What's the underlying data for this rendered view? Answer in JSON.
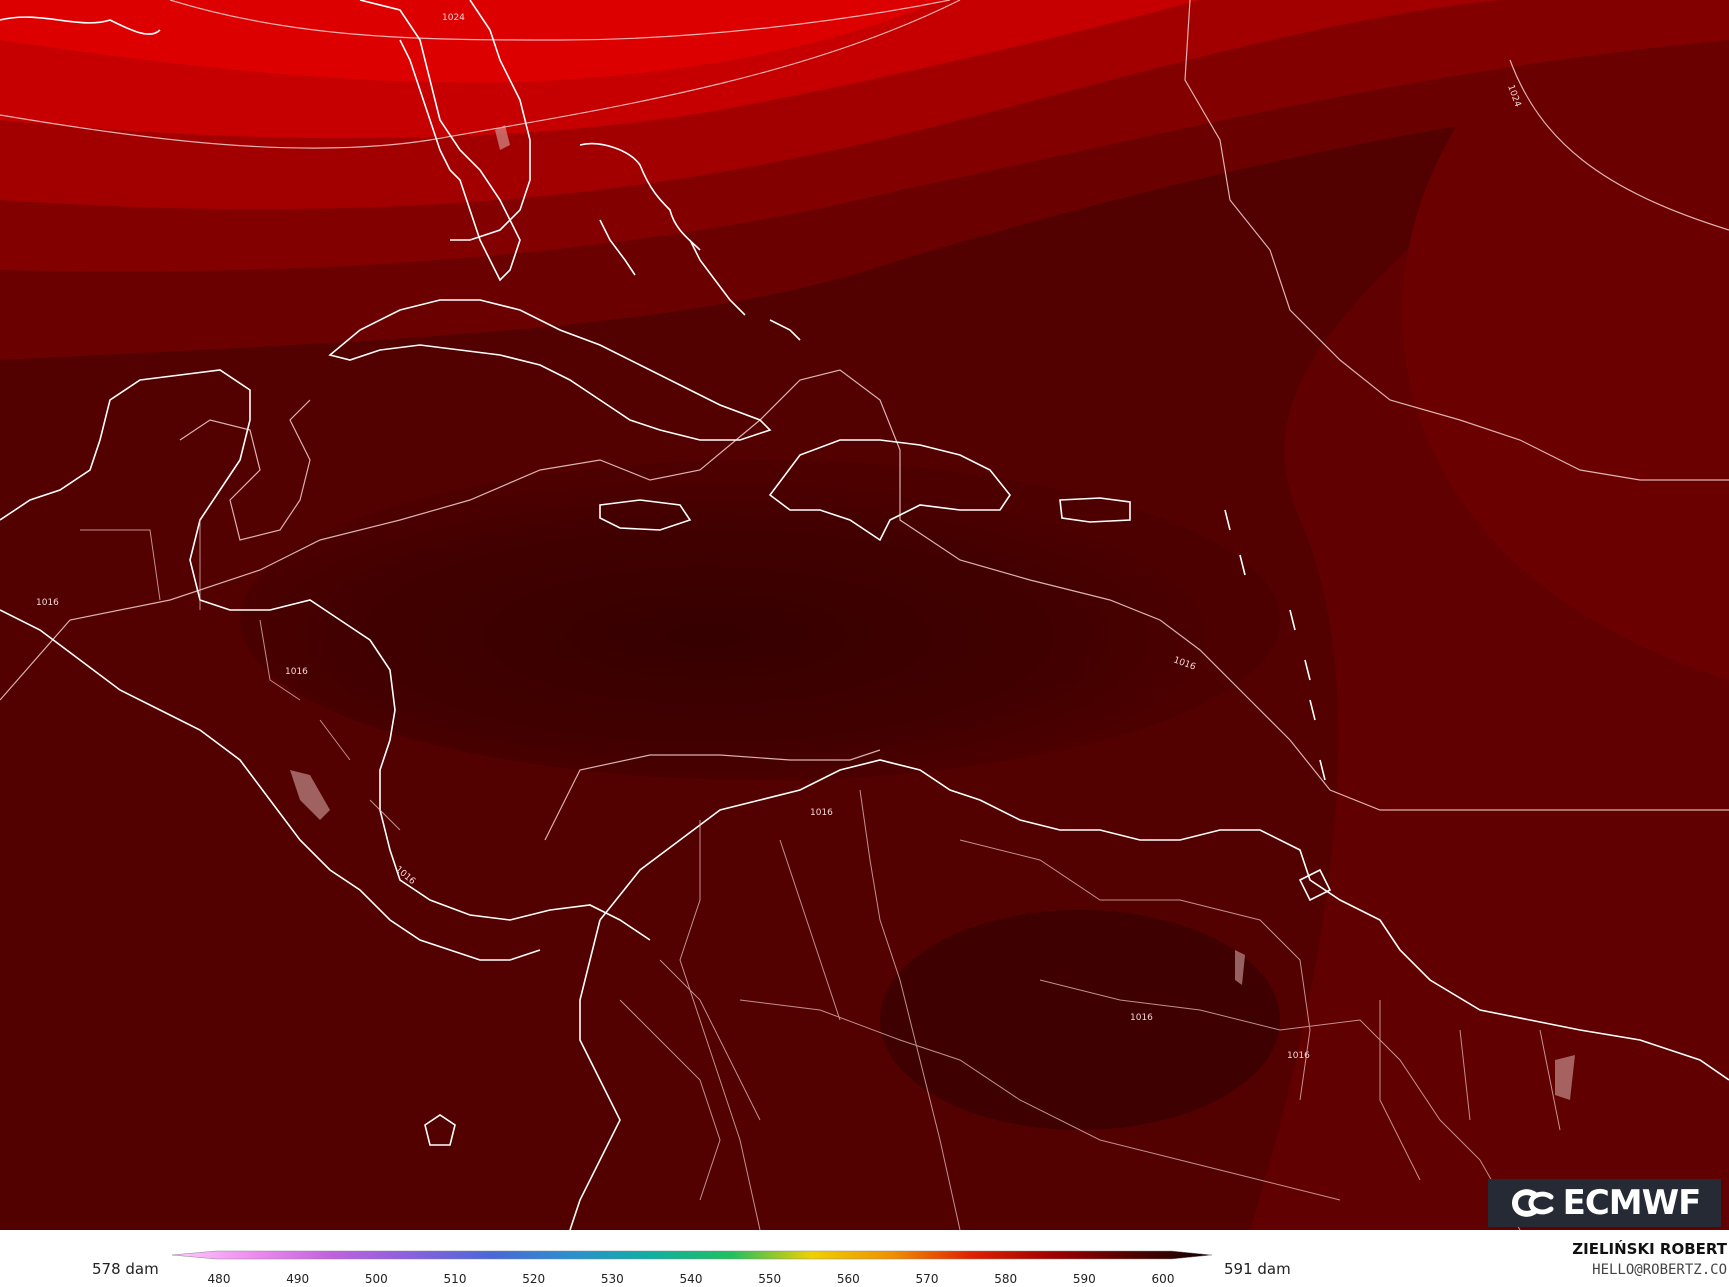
{
  "map": {
    "region": "Caribbean and northern South America",
    "isobar_labels": [
      "1024",
      "1024",
      "1016",
      "1016",
      "1016",
      "1016",
      "1016",
      "1016",
      "1016"
    ],
    "colors": {
      "deep": "#3a0000",
      "mid": "#5a0000",
      "light": "#c40000",
      "brightest": "#e40000",
      "coastline": "#ffffff"
    }
  },
  "logo": {
    "text": "ECMWF",
    "icon": "ecmwf-logo-icon"
  },
  "legend": {
    "min_label": "578 dam",
    "max_label": "591 dam",
    "ticks": [
      "480",
      "490",
      "500",
      "510",
      "520",
      "530",
      "540",
      "550",
      "560",
      "570",
      "580",
      "590",
      "600"
    ],
    "stops": [
      "#ffccff",
      "#f08cf0",
      "#c060e0",
      "#8860e0",
      "#4a68d8",
      "#2a90d0",
      "#10b0a0",
      "#20c060",
      "#f0d000",
      "#f09000",
      "#e02000",
      "#a00000",
      "#500000",
      "#100000"
    ]
  },
  "credit": {
    "name": "ZIELIŃSKI ROBERT",
    "email": "HELLO@ROBERTZ.CO"
  }
}
